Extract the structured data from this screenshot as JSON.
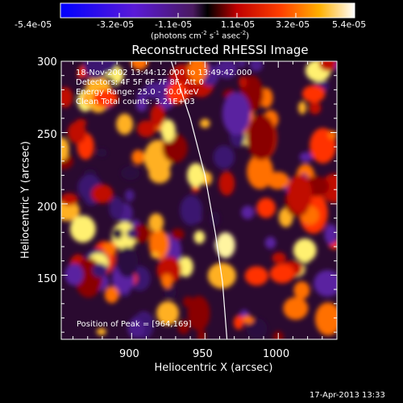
{
  "chart_data": {
    "type": "heatmap",
    "title": "Reconstructed RHESSI Image",
    "xlabel": "Heliocentric X (arcsec)",
    "ylabel": "Heliocentric Y (arcsec)",
    "xlim": [
      852,
      1040
    ],
    "ylim": [
      105,
      300
    ],
    "x_ticks": [
      900,
      950,
      1000
    ],
    "y_ticks": [
      150,
      200,
      250,
      300
    ],
    "x_tick_labels": [
      "900",
      "950",
      "1000"
    ],
    "y_tick_labels": [
      "150",
      "200",
      "250",
      "300"
    ],
    "colorbar": {
      "ticks": [
        "-5.4e-05",
        "-3.2e-05",
        "-1.1e-05",
        "1.1e-05",
        "3.2e-05",
        "5.4e-05"
      ],
      "unit_prefix": "(photons cm",
      "unit_sup1": "-2",
      "unit_mid": " s",
      "unit_sup2": "-1",
      "unit_mid2": " asec",
      "unit_sup3": "-2",
      "unit_suffix": ")"
    },
    "annotations": [
      "18-Nov-2002 13:44:12.000 to 13:49:42.000",
      "Detectors: 4F 5F 6F 7F 8F, Att 0",
      "Energy Range: 25.0 - 50.0 keV",
      "Clean     Total counts: 3.21E+03"
    ],
    "peak_label": "Position of Peak = [964,169]",
    "peak": [
      964,
      169
    ],
    "limb_curve": [
      [
        927,
        300
      ],
      [
        940,
        260
      ],
      [
        950,
        220
      ],
      [
        957,
        180
      ],
      [
        962,
        145
      ],
      [
        965,
        105
      ]
    ]
  },
  "footer": {
    "date": "17-Apr-2013 13:33"
  },
  "colors": {
    "background": "#000000",
    "text": "#ffffff"
  }
}
